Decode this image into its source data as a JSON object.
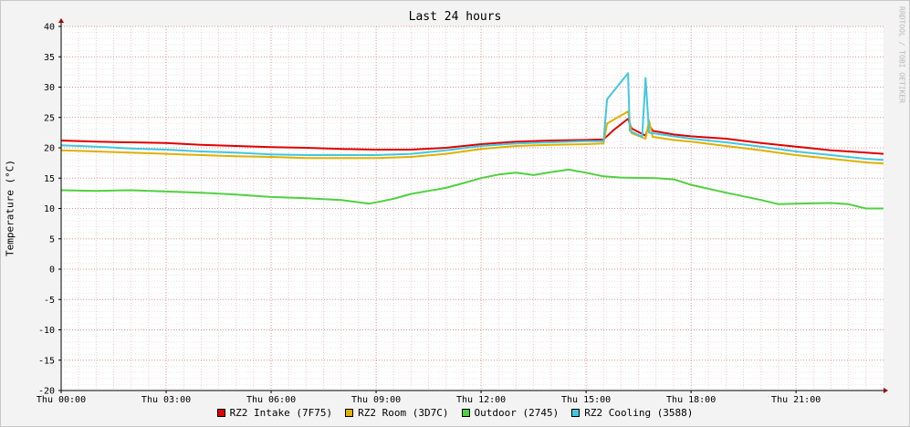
{
  "chart_data": {
    "type": "line",
    "title": "Last 24 hours",
    "ylabel": "Temperature (°C)",
    "xlabel": "",
    "watermark": "RRDTOOL / TOBI OETIKER",
    "ylim": [
      -20,
      40
    ],
    "xlim": [
      0,
      23.5
    ],
    "x_unit": "hours since Thu 00:00",
    "y_ticks": [
      40,
      35,
      30,
      25,
      20,
      15,
      10,
      5,
      0,
      -5,
      -10,
      -15,
      -20
    ],
    "x_ticks": [
      {
        "x": 0,
        "label": "Thu 00:00"
      },
      {
        "x": 3,
        "label": "Thu 03:00"
      },
      {
        "x": 6,
        "label": "Thu 06:00"
      },
      {
        "x": 9,
        "label": "Thu 09:00"
      },
      {
        "x": 12,
        "label": "Thu 12:00"
      },
      {
        "x": 15,
        "label": "Thu 15:00"
      },
      {
        "x": 18,
        "label": "Thu 18:00"
      },
      {
        "x": 21,
        "label": "Thu 21:00"
      }
    ],
    "grid": true,
    "legend_position": "bottom",
    "series": [
      {
        "name": "RZ2 Intake (7F75)",
        "color": "#e00000",
        "points": [
          [
            0,
            21.2
          ],
          [
            1,
            21.0
          ],
          [
            2,
            20.9
          ],
          [
            3,
            20.8
          ],
          [
            4,
            20.5
          ],
          [
            5,
            20.3
          ],
          [
            6,
            20.1
          ],
          [
            7,
            20.0
          ],
          [
            8,
            19.8
          ],
          [
            9,
            19.7
          ],
          [
            10,
            19.7
          ],
          [
            11,
            20.0
          ],
          [
            12,
            20.6
          ],
          [
            13,
            21.0
          ],
          [
            14,
            21.2
          ],
          [
            15,
            21.3
          ],
          [
            15.5,
            21.4
          ],
          [
            15.8,
            23.0
          ],
          [
            16.2,
            24.8
          ],
          [
            16.3,
            23.2
          ],
          [
            16.7,
            22.0
          ],
          [
            16.8,
            23.8
          ],
          [
            16.9,
            22.8
          ],
          [
            17.5,
            22.2
          ],
          [
            18,
            21.9
          ],
          [
            19,
            21.5
          ],
          [
            20,
            20.8
          ],
          [
            21,
            20.2
          ],
          [
            22,
            19.6
          ],
          [
            23,
            19.2
          ],
          [
            23.5,
            19.0
          ]
        ]
      },
      {
        "name": "RZ2 Room (3D7C)",
        "color": "#e0b000",
        "points": [
          [
            0,
            19.6
          ],
          [
            1,
            19.4
          ],
          [
            2,
            19.2
          ],
          [
            3,
            19.0
          ],
          [
            4,
            18.8
          ],
          [
            5,
            18.6
          ],
          [
            6,
            18.5
          ],
          [
            7,
            18.3
          ],
          [
            8,
            18.3
          ],
          [
            9,
            18.3
          ],
          [
            10,
            18.5
          ],
          [
            11,
            19.0
          ],
          [
            12,
            19.8
          ],
          [
            13,
            20.3
          ],
          [
            14,
            20.5
          ],
          [
            15,
            20.6
          ],
          [
            15.5,
            20.7
          ],
          [
            15.6,
            24.0
          ],
          [
            16.2,
            26.0
          ],
          [
            16.3,
            22.4
          ],
          [
            16.7,
            21.5
          ],
          [
            16.8,
            24.5
          ],
          [
            16.9,
            21.8
          ],
          [
            17.5,
            21.3
          ],
          [
            18,
            21.0
          ],
          [
            19,
            20.3
          ],
          [
            20,
            19.6
          ],
          [
            21,
            18.8
          ],
          [
            22,
            18.2
          ],
          [
            23,
            17.6
          ],
          [
            23.5,
            17.4
          ]
        ]
      },
      {
        "name": "Outdoor (2745)",
        "color": "#50d040",
        "points": [
          [
            0,
            13.0
          ],
          [
            1,
            12.9
          ],
          [
            2,
            13.0
          ],
          [
            3,
            12.8
          ],
          [
            4,
            12.6
          ],
          [
            5,
            12.3
          ],
          [
            6,
            11.9
          ],
          [
            7,
            11.7
          ],
          [
            8,
            11.4
          ],
          [
            8.8,
            10.8
          ],
          [
            9,
            11.0
          ],
          [
            9.5,
            11.6
          ],
          [
            10,
            12.4
          ],
          [
            10.5,
            12.9
          ],
          [
            11,
            13.4
          ],
          [
            11.5,
            14.2
          ],
          [
            12,
            15.0
          ],
          [
            12.5,
            15.6
          ],
          [
            13,
            15.9
          ],
          [
            13.5,
            15.5
          ],
          [
            14,
            16.0
          ],
          [
            14.5,
            16.4
          ],
          [
            15,
            15.9
          ],
          [
            15.5,
            15.3
          ],
          [
            16,
            15.1
          ],
          [
            17,
            15.0
          ],
          [
            17.5,
            14.8
          ],
          [
            18,
            13.9
          ],
          [
            19,
            12.6
          ],
          [
            20,
            11.4
          ],
          [
            20.5,
            10.7
          ],
          [
            21,
            10.8
          ],
          [
            22,
            10.9
          ],
          [
            22.5,
            10.7
          ],
          [
            23,
            10.0
          ],
          [
            23.5,
            10.0
          ]
        ]
      },
      {
        "name": "RZ2 Cooling (3588)",
        "color": "#40c8e0",
        "points": [
          [
            0,
            20.4
          ],
          [
            1,
            20.2
          ],
          [
            2,
            19.9
          ],
          [
            3,
            19.7
          ],
          [
            4,
            19.4
          ],
          [
            5,
            19.2
          ],
          [
            6,
            18.9
          ],
          [
            7,
            18.8
          ],
          [
            8,
            18.8
          ],
          [
            9,
            18.8
          ],
          [
            10,
            19.0
          ],
          [
            11,
            19.6
          ],
          [
            12,
            20.3
          ],
          [
            13,
            20.7
          ],
          [
            14,
            20.9
          ],
          [
            15,
            21.1
          ],
          [
            15.5,
            21.1
          ],
          [
            15.6,
            28.0
          ],
          [
            16.2,
            32.3
          ],
          [
            16.25,
            22.8
          ],
          [
            16.6,
            21.8
          ],
          [
            16.7,
            31.5
          ],
          [
            16.8,
            22.5
          ],
          [
            17.5,
            21.9
          ],
          [
            18,
            21.5
          ],
          [
            19,
            20.9
          ],
          [
            20,
            20.2
          ],
          [
            21,
            19.4
          ],
          [
            22,
            18.8
          ],
          [
            23,
            18.2
          ],
          [
            23.5,
            18.0
          ]
        ]
      }
    ]
  }
}
